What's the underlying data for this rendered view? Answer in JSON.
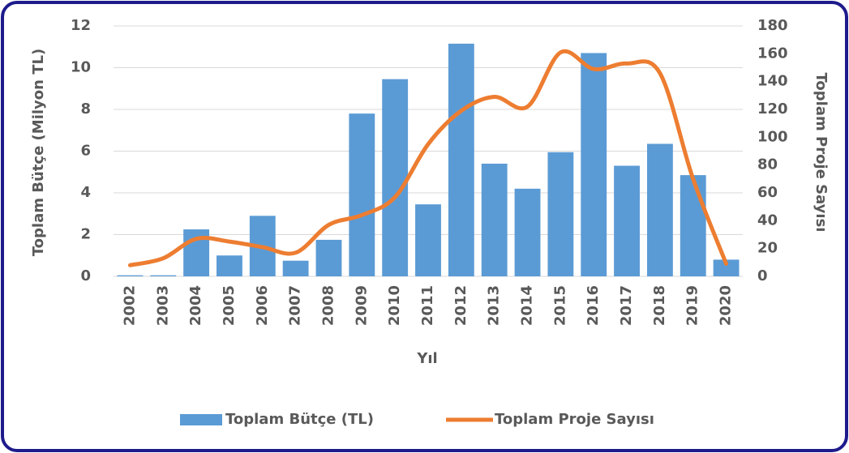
{
  "chart_data": {
    "type": "bar",
    "xlabel": "Yıl",
    "ylabel": "Toplam Bütçe (Milyon TL)",
    "y2label": "Toplam Proje Sayısı",
    "categories": [
      "2002",
      "2003",
      "2004",
      "2005",
      "2006",
      "2007",
      "2008",
      "2009",
      "2010",
      "2011",
      "2012",
      "2013",
      "2014",
      "2015",
      "2016",
      "2017",
      "2018",
      "2019",
      "2020"
    ],
    "series": [
      {
        "name": "Toplam Bütçe (TL)",
        "type": "bar",
        "color": "#5b9bd5",
        "values": [
          0.05,
          0.05,
          2.25,
          1.0,
          2.9,
          0.75,
          1.75,
          7.8,
          9.45,
          3.45,
          11.15,
          5.4,
          4.2,
          5.95,
          10.7,
          5.3,
          6.35,
          4.85,
          0.8
        ]
      },
      {
        "name": "Toplam Proje Sayısı",
        "type": "line",
        "axis": "y2",
        "color": "#ed7d31",
        "values": [
          8,
          13,
          27,
          25,
          21,
          17,
          37,
          44,
          57,
          95,
          119,
          129,
          122,
          161,
          149,
          153,
          146,
          70,
          9
        ]
      }
    ],
    "ylim": [
      0,
      12
    ],
    "yticks": [
      0,
      2,
      4,
      6,
      8,
      10,
      12
    ],
    "y2lim": [
      0,
      180
    ],
    "y2ticks": [
      0,
      20,
      40,
      60,
      80,
      100,
      120,
      140,
      160,
      180
    ],
    "grid": true,
    "legend": "bottom"
  }
}
